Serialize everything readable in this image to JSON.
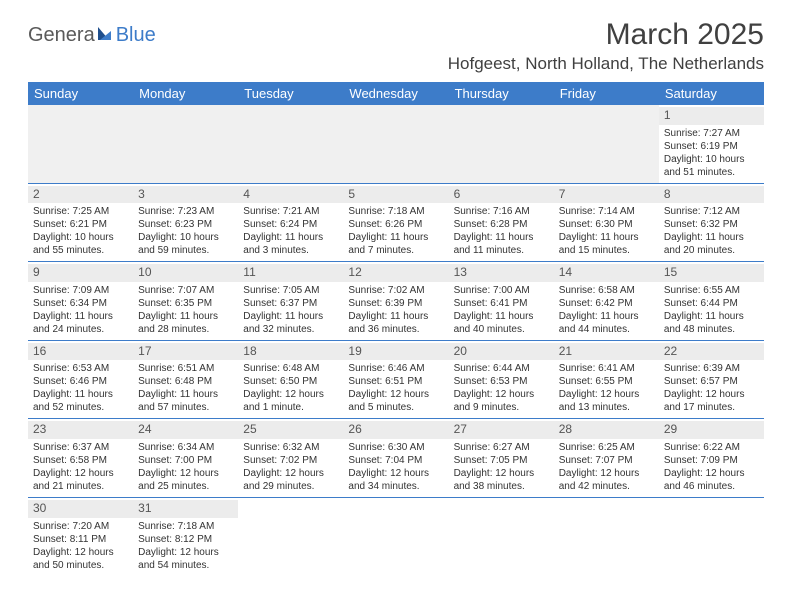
{
  "logo": {
    "text_left": "Genera",
    "text_right": "Blue"
  },
  "title": "March 2025",
  "location": "Hofgeest, North Holland, The Netherlands",
  "colors": {
    "header_bg": "#3d7cc9",
    "header_text": "#ffffff",
    "daynum_bg": "#ececec",
    "border": "#3d7cc9",
    "text": "#333333",
    "logo_gray": "#5a5a5a",
    "logo_blue": "#3d7cc9"
  },
  "weekdays": [
    "Sunday",
    "Monday",
    "Tuesday",
    "Wednesday",
    "Thursday",
    "Friday",
    "Saturday"
  ],
  "weeks": [
    [
      null,
      null,
      null,
      null,
      null,
      null,
      {
        "n": "1",
        "sunrise": "7:27 AM",
        "sunset": "6:19 PM",
        "daylight": "10 hours and 51 minutes."
      }
    ],
    [
      {
        "n": "2",
        "sunrise": "7:25 AM",
        "sunset": "6:21 PM",
        "daylight": "10 hours and 55 minutes."
      },
      {
        "n": "3",
        "sunrise": "7:23 AM",
        "sunset": "6:23 PM",
        "daylight": "10 hours and 59 minutes."
      },
      {
        "n": "4",
        "sunrise": "7:21 AM",
        "sunset": "6:24 PM",
        "daylight": "11 hours and 3 minutes."
      },
      {
        "n": "5",
        "sunrise": "7:18 AM",
        "sunset": "6:26 PM",
        "daylight": "11 hours and 7 minutes."
      },
      {
        "n": "6",
        "sunrise": "7:16 AM",
        "sunset": "6:28 PM",
        "daylight": "11 hours and 11 minutes."
      },
      {
        "n": "7",
        "sunrise": "7:14 AM",
        "sunset": "6:30 PM",
        "daylight": "11 hours and 15 minutes."
      },
      {
        "n": "8",
        "sunrise": "7:12 AM",
        "sunset": "6:32 PM",
        "daylight": "11 hours and 20 minutes."
      }
    ],
    [
      {
        "n": "9",
        "sunrise": "7:09 AM",
        "sunset": "6:34 PM",
        "daylight": "11 hours and 24 minutes."
      },
      {
        "n": "10",
        "sunrise": "7:07 AM",
        "sunset": "6:35 PM",
        "daylight": "11 hours and 28 minutes."
      },
      {
        "n": "11",
        "sunrise": "7:05 AM",
        "sunset": "6:37 PM",
        "daylight": "11 hours and 32 minutes."
      },
      {
        "n": "12",
        "sunrise": "7:02 AM",
        "sunset": "6:39 PM",
        "daylight": "11 hours and 36 minutes."
      },
      {
        "n": "13",
        "sunrise": "7:00 AM",
        "sunset": "6:41 PM",
        "daylight": "11 hours and 40 minutes."
      },
      {
        "n": "14",
        "sunrise": "6:58 AM",
        "sunset": "6:42 PM",
        "daylight": "11 hours and 44 minutes."
      },
      {
        "n": "15",
        "sunrise": "6:55 AM",
        "sunset": "6:44 PM",
        "daylight": "11 hours and 48 minutes."
      }
    ],
    [
      {
        "n": "16",
        "sunrise": "6:53 AM",
        "sunset": "6:46 PM",
        "daylight": "11 hours and 52 minutes."
      },
      {
        "n": "17",
        "sunrise": "6:51 AM",
        "sunset": "6:48 PM",
        "daylight": "11 hours and 57 minutes."
      },
      {
        "n": "18",
        "sunrise": "6:48 AM",
        "sunset": "6:50 PM",
        "daylight": "12 hours and 1 minute."
      },
      {
        "n": "19",
        "sunrise": "6:46 AM",
        "sunset": "6:51 PM",
        "daylight": "12 hours and 5 minutes."
      },
      {
        "n": "20",
        "sunrise": "6:44 AM",
        "sunset": "6:53 PM",
        "daylight": "12 hours and 9 minutes."
      },
      {
        "n": "21",
        "sunrise": "6:41 AM",
        "sunset": "6:55 PM",
        "daylight": "12 hours and 13 minutes."
      },
      {
        "n": "22",
        "sunrise": "6:39 AM",
        "sunset": "6:57 PM",
        "daylight": "12 hours and 17 minutes."
      }
    ],
    [
      {
        "n": "23",
        "sunrise": "6:37 AM",
        "sunset": "6:58 PM",
        "daylight": "12 hours and 21 minutes."
      },
      {
        "n": "24",
        "sunrise": "6:34 AM",
        "sunset": "7:00 PM",
        "daylight": "12 hours and 25 minutes."
      },
      {
        "n": "25",
        "sunrise": "6:32 AM",
        "sunset": "7:02 PM",
        "daylight": "12 hours and 29 minutes."
      },
      {
        "n": "26",
        "sunrise": "6:30 AM",
        "sunset": "7:04 PM",
        "daylight": "12 hours and 34 minutes."
      },
      {
        "n": "27",
        "sunrise": "6:27 AM",
        "sunset": "7:05 PM",
        "daylight": "12 hours and 38 minutes."
      },
      {
        "n": "28",
        "sunrise": "6:25 AM",
        "sunset": "7:07 PM",
        "daylight": "12 hours and 42 minutes."
      },
      {
        "n": "29",
        "sunrise": "6:22 AM",
        "sunset": "7:09 PM",
        "daylight": "12 hours and 46 minutes."
      }
    ],
    [
      {
        "n": "30",
        "sunrise": "7:20 AM",
        "sunset": "8:11 PM",
        "daylight": "12 hours and 50 minutes."
      },
      {
        "n": "31",
        "sunrise": "7:18 AM",
        "sunset": "8:12 PM",
        "daylight": "12 hours and 54 minutes."
      },
      null,
      null,
      null,
      null,
      null
    ]
  ]
}
